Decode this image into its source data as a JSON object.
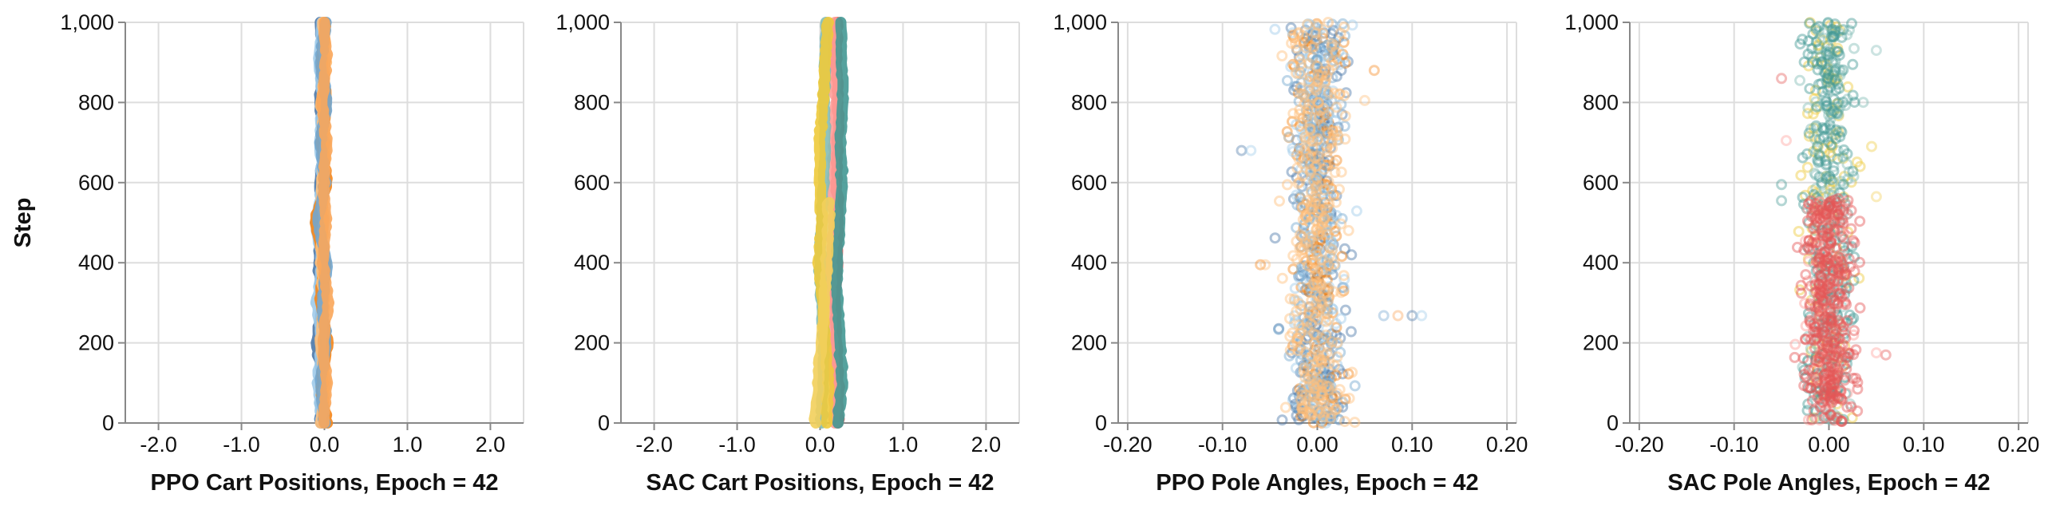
{
  "colors": {
    "ppo": [
      "#4c78a8",
      "#9ecae9",
      "#f58518",
      "#ffbf79",
      "#72a6cf",
      "#f9a65a"
    ],
    "sac": [
      "#e45756",
      "#ff9d98",
      "#439894",
      "#83bcb6",
      "#eeca3b",
      "#f2cf5b"
    ]
  },
  "chart_data": [
    {
      "type": "line",
      "xlabel": "PPO Cart Positions, Epoch = 42",
      "ylabel": "Step",
      "xlim": [
        -2.4,
        2.4
      ],
      "ylim": [
        0,
        1000
      ],
      "xticks": [
        -2,
        -1,
        0,
        1,
        2
      ],
      "xtick_labels": [
        "-2.0",
        "-1.0",
        "0.0",
        "1.0",
        "2.0"
      ],
      "yticks": [
        0,
        200,
        400,
        600,
        800,
        1000
      ],
      "ytick_labels": [
        "0",
        "200",
        "400",
        "600",
        "800",
        "1,000"
      ],
      "grid": true,
      "palette": "ppo",
      "series": [
        {
          "values": [
            [
              -0.06,
              0
            ],
            [
              -0.02,
              100
            ],
            [
              -0.09,
              200
            ],
            [
              -0.03,
              300
            ],
            [
              -0.07,
              400
            ],
            [
              -0.02,
              500
            ],
            [
              -0.05,
              600
            ],
            [
              -0.01,
              700
            ],
            [
              -0.06,
              800
            ],
            [
              -0.02,
              900
            ],
            [
              -0.05,
              1000
            ]
          ]
        },
        {
          "values": [
            [
              -0.02,
              0
            ],
            [
              -0.08,
              100
            ],
            [
              -0.03,
              200
            ],
            [
              -0.09,
              300
            ],
            [
              -0.03,
              400
            ],
            [
              -0.1,
              500
            ],
            [
              -0.02,
              600
            ],
            [
              -0.06,
              700
            ],
            [
              -0.01,
              800
            ],
            [
              -0.07,
              900
            ],
            [
              -0.03,
              1000
            ]
          ]
        },
        {
          "values": [
            [
              0.02,
              0
            ],
            [
              -0.04,
              100
            ],
            [
              0.04,
              200
            ],
            [
              -0.05,
              300
            ],
            [
              0.01,
              400
            ],
            [
              -0.12,
              500
            ],
            [
              0.03,
              600
            ],
            [
              -0.04,
              700
            ],
            [
              0.02,
              800
            ],
            [
              -0.03,
              900
            ],
            [
              0.01,
              1000
            ]
          ]
        },
        {
          "values": [
            [
              -0.04,
              0
            ],
            [
              0.01,
              100
            ],
            [
              -0.05,
              200
            ],
            [
              0.0,
              300
            ],
            [
              -0.04,
              400
            ],
            [
              -0.01,
              500
            ],
            [
              -0.03,
              600
            ],
            [
              0.02,
              700
            ],
            [
              -0.04,
              800
            ],
            [
              0.01,
              900
            ],
            [
              -0.02,
              1000
            ]
          ]
        },
        {
          "values": [
            [
              0.0,
              0
            ],
            [
              -0.05,
              100
            ],
            [
              0.02,
              200
            ],
            [
              -0.03,
              300
            ],
            [
              0.03,
              400
            ],
            [
              -0.08,
              500
            ],
            [
              0.01,
              600
            ],
            [
              -0.05,
              700
            ],
            [
              0.03,
              800
            ],
            [
              -0.05,
              900
            ],
            [
              0.02,
              1000
            ]
          ]
        },
        {
          "values": [
            [
              -0.01,
              0
            ],
            [
              0.03,
              100
            ],
            [
              -0.02,
              200
            ],
            [
              0.04,
              300
            ],
            [
              -0.02,
              400
            ],
            [
              0.02,
              500
            ],
            [
              -0.01,
              600
            ],
            [
              0.03,
              700
            ],
            [
              -0.03,
              800
            ],
            [
              0.02,
              900
            ],
            [
              0.0,
              1000
            ]
          ]
        }
      ]
    },
    {
      "type": "line",
      "xlabel": "SAC Cart Positions, Epoch = 42",
      "ylabel": "",
      "xlim": [
        -2.4,
        2.4
      ],
      "ylim": [
        0,
        1000
      ],
      "xticks": [
        -2,
        -1,
        0,
        1,
        2
      ],
      "xtick_labels": [
        "-2.0",
        "-1.0",
        "0.0",
        "1.0",
        "2.0"
      ],
      "yticks": [
        0,
        200,
        400,
        600,
        800,
        1000
      ],
      "ytick_labels": [
        "0",
        "200",
        "400",
        "600",
        "800",
        "1,000"
      ],
      "grid": true,
      "palette": "sac",
      "series": [
        {
          "values": [
            [
              0.22,
              0
            ],
            [
              0.22,
              100
            ],
            [
              0.2,
              200
            ],
            [
              0.18,
              300
            ],
            [
              0.2,
              400
            ],
            [
              0.22,
              500
            ],
            [
              0.2,
              600
            ],
            [
              0.21,
              700
            ],
            [
              0.22,
              800
            ],
            [
              0.2,
              900
            ],
            [
              0.21,
              1000
            ]
          ]
        },
        {
          "values": [
            [
              0.18,
              0
            ],
            [
              0.17,
              100
            ],
            [
              0.15,
              200
            ],
            [
              0.12,
              300
            ],
            [
              0.14,
              400
            ],
            [
              0.16,
              500
            ],
            [
              0.15,
              600
            ],
            [
              0.17,
              700
            ],
            [
              0.19,
              800
            ],
            [
              0.17,
              900
            ],
            [
              0.18,
              1000
            ]
          ]
        },
        {
          "values": [
            [
              0.22,
              0
            ],
            [
              0.27,
              100
            ],
            [
              0.24,
              200
            ],
            [
              0.21,
              300
            ],
            [
              0.2,
              400
            ],
            [
              0.24,
              500
            ],
            [
              0.26,
              600
            ],
            [
              0.25,
              700
            ],
            [
              0.27,
              800
            ],
            [
              0.26,
              900
            ],
            [
              0.25,
              1000
            ]
          ]
        },
        {
          "values": [
            [
              0.02,
              0
            ],
            [
              0.03,
              100
            ],
            [
              0.05,
              200
            ],
            [
              0.02,
              300
            ],
            [
              0.0,
              400
            ],
            [
              0.02,
              500
            ],
            [
              0.04,
              600
            ],
            [
              0.06,
              700
            ],
            [
              0.05,
              800
            ],
            [
              0.06,
              900
            ],
            [
              0.07,
              1000
            ]
          ]
        },
        {
          "values": [
            [
              0.07,
              0
            ],
            [
              0.1,
              100
            ],
            [
              0.06,
              200
            ],
            [
              0.04,
              300
            ],
            [
              -0.02,
              400
            ],
            [
              0.02,
              500
            ],
            [
              0.0,
              600
            ],
            [
              -0.01,
              700
            ],
            [
              0.04,
              800
            ],
            [
              0.06,
              900
            ],
            [
              0.1,
              1000
            ]
          ]
        },
        {
          "values": [
            [
              -0.06,
              0
            ],
            [
              -0.02,
              100
            ],
            [
              0.02,
              200
            ],
            [
              0.05,
              300
            ],
            [
              0.08,
              400
            ],
            [
              0.1,
              500
            ],
            [
              0.11,
              550
            ]
          ]
        }
      ]
    },
    {
      "type": "scatter",
      "xlabel": "PPO Pole Angles, Epoch = 42",
      "ylabel": "",
      "xlim": [
        -0.21,
        0.21
      ],
      "ylim": [
        0,
        1000
      ],
      "xticks": [
        -0.2,
        -0.1,
        0,
        0.1,
        0.2
      ],
      "xtick_labels": [
        "-0.20",
        "-0.10",
        "0.00",
        "0.10",
        "0.20"
      ],
      "yticks": [
        0,
        200,
        400,
        600,
        800,
        1000
      ],
      "ytick_labels": [
        "0",
        "200",
        "400",
        "600",
        "800",
        "1,000"
      ],
      "grid": true,
      "palette": "ppo",
      "spread": 0.05,
      "outliers": [
        [
          -0.08,
          680
        ],
        [
          -0.07,
          680
        ],
        [
          -0.06,
          395
        ],
        [
          -0.055,
          395
        ],
        [
          0.07,
          268
        ],
        [
          0.085,
          268
        ],
        [
          0.1,
          268
        ],
        [
          0.11,
          268
        ],
        [
          0.06,
          880
        ],
        [
          0.05,
          805
        ]
      ]
    },
    {
      "type": "scatter",
      "xlabel": "SAC Pole Angles, Epoch = 42",
      "ylabel": "",
      "xlim": [
        -0.21,
        0.21
      ],
      "ylim": [
        0,
        1000
      ],
      "xticks": [
        -0.2,
        -0.1,
        0,
        0.1,
        0.2
      ],
      "xtick_labels": [
        "-0.20",
        "-0.10",
        "0.00",
        "0.10",
        "0.20"
      ],
      "yticks": [
        0,
        200,
        400,
        600,
        800,
        1000
      ],
      "ytick_labels": [
        "0",
        "200",
        "400",
        "600",
        "800",
        "1,000"
      ],
      "grid": true,
      "palette": "sac",
      "spread": 0.045,
      "outliers": [
        [
          -0.05,
          860
        ],
        [
          -0.045,
          705
        ],
        [
          -0.05,
          555
        ],
        [
          0.05,
          930
        ],
        [
          0.045,
          690
        ],
        [
          0.05,
          565
        ],
        [
          0.06,
          170
        ],
        [
          0.05,
          175
        ],
        [
          -0.05,
          595
        ]
      ]
    }
  ]
}
